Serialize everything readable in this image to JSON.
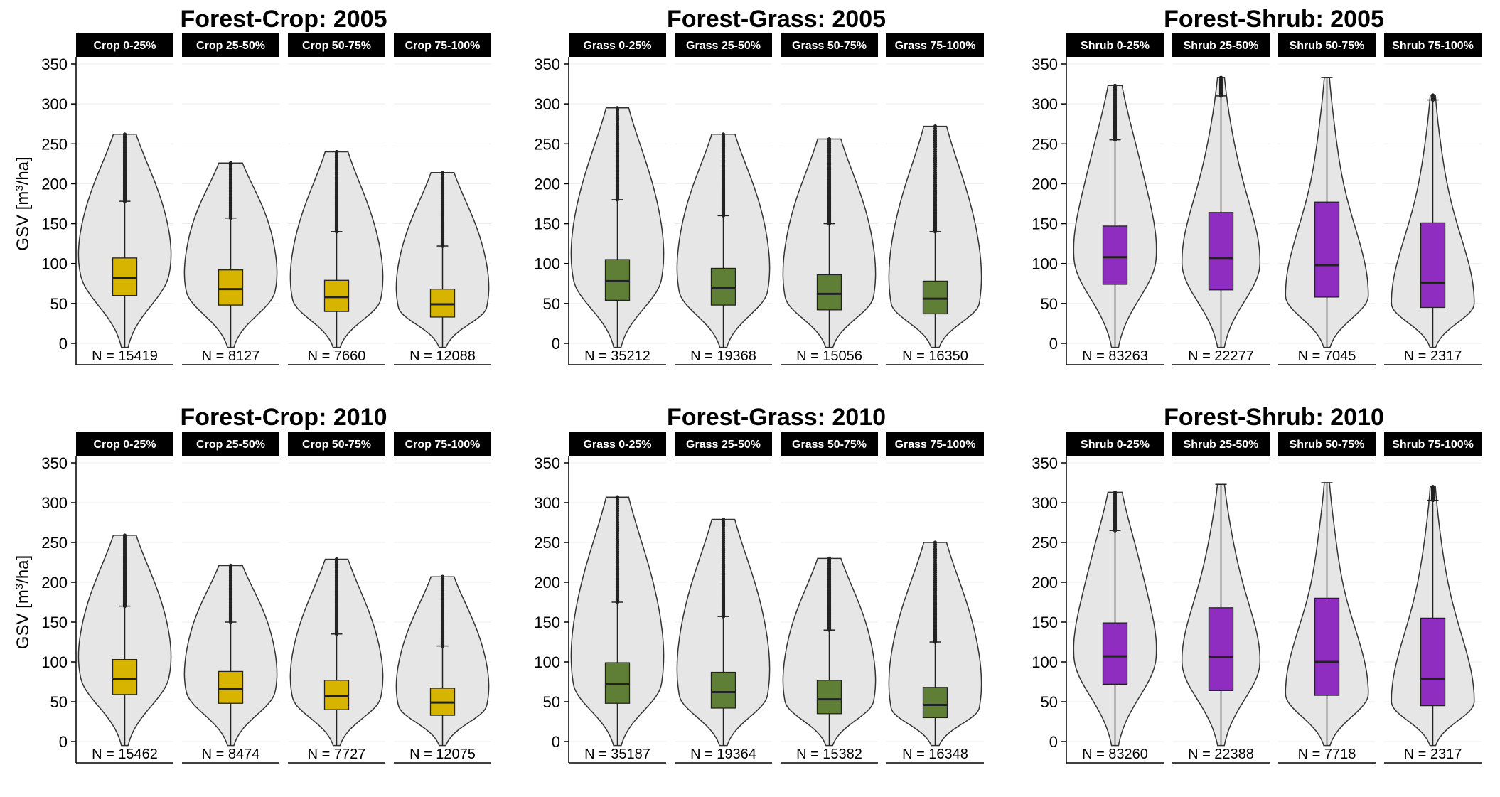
{
  "colors": {
    "crop": "#D6B400",
    "grass": "#5E7F35",
    "shrub": "#8E2DBF",
    "violin": "#E6E6E6"
  },
  "chart_data": [
    {
      "type": "violin",
      "title": "Forest-Crop: 2005",
      "ylabel": "GSV [m3/ha]",
      "ylim": [
        0,
        350
      ],
      "yticks": [
        0,
        50,
        100,
        150,
        200,
        250,
        300,
        350
      ],
      "color": "crop",
      "panels": [
        {
          "label": "Crop 0-25%",
          "n": "N = 15419",
          "q1": 60,
          "median": 82,
          "q3": 107,
          "whisker_high": 178,
          "max": 262,
          "mode": 85,
          "width": 0.95,
          "mass": 0.4
        },
        {
          "label": "Crop 25-50%",
          "n": "N = 8127",
          "q1": 48,
          "median": 68,
          "q3": 92,
          "whisker_high": 157,
          "max": 226,
          "mode": 65,
          "width": 0.95,
          "mass": 0.4
        },
        {
          "label": "Crop 50-75%",
          "n": "N = 7660",
          "q1": 40,
          "median": 58,
          "q3": 79,
          "whisker_high": 140,
          "max": 240,
          "mode": 55,
          "width": 0.95,
          "mass": 0.4
        },
        {
          "label": "Crop 75-100%",
          "n": "N = 12088",
          "q1": 33,
          "median": 49,
          "q3": 68,
          "whisker_high": 122,
          "max": 214,
          "mode": 45,
          "width": 0.95,
          "mass": 0.4
        }
      ]
    },
    {
      "type": "violin",
      "title": "Forest-Grass: 2005",
      "ylabel": "",
      "ylim": [
        0,
        350
      ],
      "yticks": [
        0,
        50,
        100,
        150,
        200,
        250,
        300,
        350
      ],
      "color": "grass",
      "panels": [
        {
          "label": "Grass 0-25%",
          "n": "N = 35212",
          "q1": 54,
          "median": 78,
          "q3": 105,
          "whisker_high": 180,
          "max": 295,
          "mode": 80,
          "width": 0.95,
          "mass": 0.4
        },
        {
          "label": "Grass 25-50%",
          "n": "N = 19368",
          "q1": 48,
          "median": 69,
          "q3": 94,
          "whisker_high": 160,
          "max": 262,
          "mode": 65,
          "width": 0.95,
          "mass": 0.4
        },
        {
          "label": "Grass 50-75%",
          "n": "N = 15056",
          "q1": 42,
          "median": 62,
          "q3": 86,
          "whisker_high": 150,
          "max": 256,
          "mode": 58,
          "width": 0.95,
          "mass": 0.4
        },
        {
          "label": "Grass 75-100%",
          "n": "N = 16350",
          "q1": 37,
          "median": 56,
          "q3": 78,
          "whisker_high": 140,
          "max": 272,
          "mode": 50,
          "width": 0.95,
          "mass": 0.4
        }
      ]
    },
    {
      "type": "violin",
      "title": "Forest-Shrub: 2005",
      "ylabel": "",
      "ylim": [
        0,
        350
      ],
      "yticks": [
        0,
        50,
        100,
        150,
        200,
        250,
        300,
        350
      ],
      "color": "shrub",
      "panels": [
        {
          "label": "Shrub 0-25%",
          "n": "N = 83263",
          "q1": 74,
          "median": 108,
          "q3": 147,
          "whisker_high": 255,
          "max": 323,
          "mode": 105,
          "width": 0.85,
          "mass": 0.28
        },
        {
          "label": "Shrub 25-50%",
          "n": "N = 22277",
          "q1": 67,
          "median": 107,
          "q3": 164,
          "whisker_high": 310,
          "max": 333,
          "mode": 100,
          "width": 0.8,
          "mass": 0.15
        },
        {
          "label": "Shrub 50-75%",
          "n": "N = 7045",
          "q1": 58,
          "median": 98,
          "q3": 177,
          "whisker_high": 333,
          "max": 333,
          "mode": 60,
          "width": 0.85,
          "mass": 0.1
        },
        {
          "label": "Shrub 75-100%",
          "n": "N = 2317",
          "q1": 45,
          "median": 76,
          "q3": 151,
          "whisker_high": 305,
          "max": 311,
          "mode": 50,
          "width": 0.85,
          "mass": 0.1
        }
      ]
    },
    {
      "type": "violin",
      "title": "Forest-Crop: 2010",
      "ylabel": "GSV [m3/ha]",
      "ylim": [
        0,
        350
      ],
      "yticks": [
        0,
        50,
        100,
        150,
        200,
        250,
        300,
        350
      ],
      "color": "crop",
      "panels": [
        {
          "label": "Crop 0-25%",
          "n": "N = 15462",
          "q1": 59,
          "median": 79,
          "q3": 103,
          "whisker_high": 170,
          "max": 259,
          "mode": 80,
          "width": 0.95,
          "mass": 0.4
        },
        {
          "label": "Crop 25-50%",
          "n": "N = 8474",
          "q1": 48,
          "median": 66,
          "q3": 88,
          "whisker_high": 150,
          "max": 221,
          "mode": 62,
          "width": 0.95,
          "mass": 0.4
        },
        {
          "label": "Crop 50-75%",
          "n": "N = 7727",
          "q1": 40,
          "median": 57,
          "q3": 77,
          "whisker_high": 135,
          "max": 229,
          "mode": 55,
          "width": 0.95,
          "mass": 0.4
        },
        {
          "label": "Crop 75-100%",
          "n": "N = 12075",
          "q1": 33,
          "median": 49,
          "q3": 67,
          "whisker_high": 120,
          "max": 207,
          "mode": 45,
          "width": 0.95,
          "mass": 0.4
        }
      ]
    },
    {
      "type": "violin",
      "title": "Forest-Grass: 2010",
      "ylabel": "",
      "ylim": [
        0,
        350
      ],
      "yticks": [
        0,
        50,
        100,
        150,
        200,
        250,
        300,
        350
      ],
      "color": "grass",
      "panels": [
        {
          "label": "Grass 0-25%",
          "n": "N = 35187",
          "q1": 48,
          "median": 72,
          "q3": 99,
          "whisker_high": 175,
          "max": 307,
          "mode": 72,
          "width": 0.95,
          "mass": 0.4
        },
        {
          "label": "Grass 25-50%",
          "n": "N = 19364",
          "q1": 42,
          "median": 62,
          "q3": 87,
          "whisker_high": 157,
          "max": 279,
          "mode": 58,
          "width": 0.95,
          "mass": 0.4
        },
        {
          "label": "Grass 50-75%",
          "n": "N = 15382",
          "q1": 35,
          "median": 53,
          "q3": 77,
          "whisker_high": 140,
          "max": 230,
          "mode": 50,
          "width": 0.95,
          "mass": 0.4
        },
        {
          "label": "Grass 75-100%",
          "n": "N = 16348",
          "q1": 30,
          "median": 46,
          "q3": 68,
          "whisker_high": 125,
          "max": 250,
          "mode": 42,
          "width": 0.95,
          "mass": 0.4
        }
      ]
    },
    {
      "type": "violin",
      "title": "Forest-Shrub: 2010",
      "ylabel": "",
      "ylim": [
        0,
        350
      ],
      "yticks": [
        0,
        50,
        100,
        150,
        200,
        250,
        300,
        350
      ],
      "color": "shrub",
      "panels": [
        {
          "label": "Shrub 0-25%",
          "n": "N = 83260",
          "q1": 72,
          "median": 107,
          "q3": 149,
          "whisker_high": 265,
          "max": 313,
          "mode": 105,
          "width": 0.85,
          "mass": 0.28
        },
        {
          "label": "Shrub 25-50%",
          "n": "N = 22388",
          "q1": 64,
          "median": 106,
          "q3": 168,
          "whisker_high": 323,
          "max": 323,
          "mode": 100,
          "width": 0.8,
          "mass": 0.15
        },
        {
          "label": "Shrub 50-75%",
          "n": "N = 7718",
          "q1": 58,
          "median": 100,
          "q3": 180,
          "whisker_high": 325,
          "max": 325,
          "mode": 60,
          "width": 0.85,
          "mass": 0.1
        },
        {
          "label": "Shrub 75-100%",
          "n": "N = 2317",
          "q1": 45,
          "median": 79,
          "q3": 155,
          "whisker_high": 303,
          "max": 320,
          "mode": 50,
          "width": 0.85,
          "mass": 0.1
        }
      ]
    }
  ]
}
